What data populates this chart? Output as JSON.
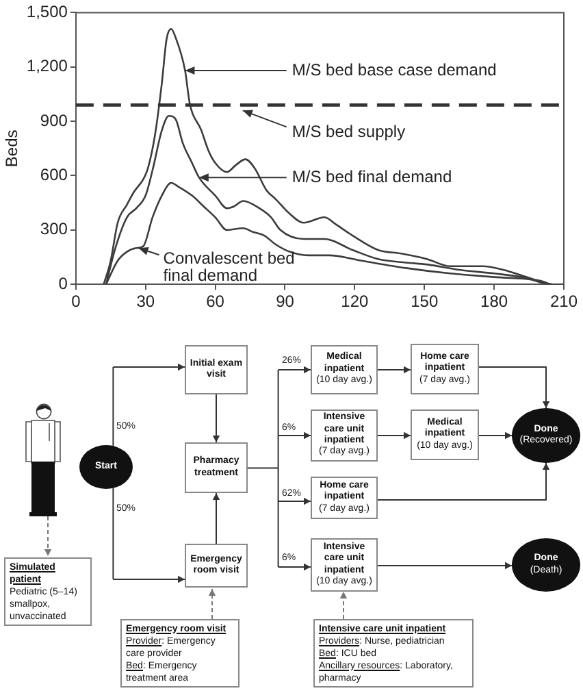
{
  "chart_data": [
    {
      "type": "line",
      "ylabel": "Beds",
      "xlim": [
        0,
        210
      ],
      "xticks": [
        0,
        30,
        60,
        90,
        120,
        150,
        180,
        210
      ],
      "ylim": [
        0,
        1500
      ],
      "yticks": [
        0,
        300,
        600,
        900,
        {
          "value": 1200,
          "label": "1,200"
        },
        {
          "value": 1500,
          "label": "1,500"
        }
      ],
      "marker": "none",
      "series": [
        {
          "color": "#3c3c3c",
          "x": [
            12,
            15,
            18,
            22,
            25,
            29,
            31,
            34,
            37,
            39,
            41,
            43,
            47,
            49,
            54,
            57,
            60,
            65,
            69,
            73,
            77,
            82,
            86,
            92,
            98,
            107,
            112,
            119,
            130,
            140,
            151,
            161,
            175,
            184,
            194,
            205,
            210
          ],
          "values": [
            0,
            130,
            340,
            440,
            510,
            580,
            640,
            820,
            1110,
            1350,
            1410,
            1360,
            1180,
            1000,
            850,
            740,
            670,
            620,
            660,
            690,
            640,
            520,
            470,
            390,
            340,
            370,
            330,
            270,
            190,
            170,
            140,
            100,
            100,
            80,
            40,
            0,
            0
          ]
        },
        {
          "color": "#3c3c3c",
          "x": [
            13,
            17,
            22,
            26,
            30,
            33,
            37,
            40,
            43,
            46,
            50,
            53,
            60,
            65,
            68,
            72,
            79,
            84,
            88,
            98,
            107,
            119,
            130,
            142,
            151,
            165,
            180,
            192,
            205,
            210
          ],
          "values": [
            0,
            200,
            370,
            420,
            490,
            630,
            850,
            930,
            910,
            780,
            670,
            590,
            490,
            420,
            430,
            460,
            420,
            370,
            300,
            250,
            250,
            190,
            140,
            120,
            110,
            80,
            60,
            40,
            0,
            0
          ]
        },
        {
          "color": "#3c3c3c",
          "x": [
            13,
            18,
            22,
            26,
            29,
            33,
            37,
            41,
            44,
            50,
            55,
            60,
            65,
            72,
            76,
            81,
            86,
            92,
            100,
            109,
            123,
            142,
            161,
            180,
            200,
            205,
            210
          ],
          "values": [
            0,
            130,
            180,
            200,
            210,
            370,
            490,
            560,
            540,
            490,
            430,
            370,
            300,
            310,
            290,
            270,
            220,
            180,
            160,
            160,
            130,
            90,
            60,
            40,
            20,
            0,
            0
          ]
        }
      ],
      "ref_lines": [
        {
          "axis": "y",
          "value": 990,
          "label": "M/S bed supply",
          "line_style": "dashed",
          "color": "#333333"
        }
      ],
      "annotations": [
        {
          "text": "M/S bed base case demand",
          "x": 47,
          "y": 1180
        },
        {
          "text": "M/S bed final demand",
          "x": 53,
          "y": 590
        },
        {
          "text": "Convalescent bed final demand",
          "x": 27,
          "y": 200
        }
      ]
    },
    {
      "type": "other",
      "annotations": [
        "Start",
        "50%",
        "50%",
        "Initial exam visit",
        "Pharmacy treatment",
        "Emergency room visit",
        "26%",
        "6%",
        "62%",
        "6%",
        "Medical inpatient",
        "(10 day avg.)",
        "Intensive care unit inpatient",
        "(7 day avg.)",
        "Home care inpatient",
        "(7 day avg.)",
        "Intensive care unit inpatient",
        "(10 day avg.)",
        "Home care inpatient",
        "(7 day avg.)",
        "Medical inpatient",
        "(10 day avg.)",
        "Done",
        "(Recovered)",
        "Done",
        "(Death)",
        "Simulated patient",
        "Pediatric (5–14) smallpox, unvaccinated",
        "Emergency room visit",
        "Provider: Emergency care provider",
        "Bed: Emergency treatment area",
        "Intensive care unit inpatient",
        "Providers: Nurse, pediatrician",
        "Bed: ICU bed",
        "Ancillary resources: Laboratory, pharmacy"
      ]
    }
  ]
}
